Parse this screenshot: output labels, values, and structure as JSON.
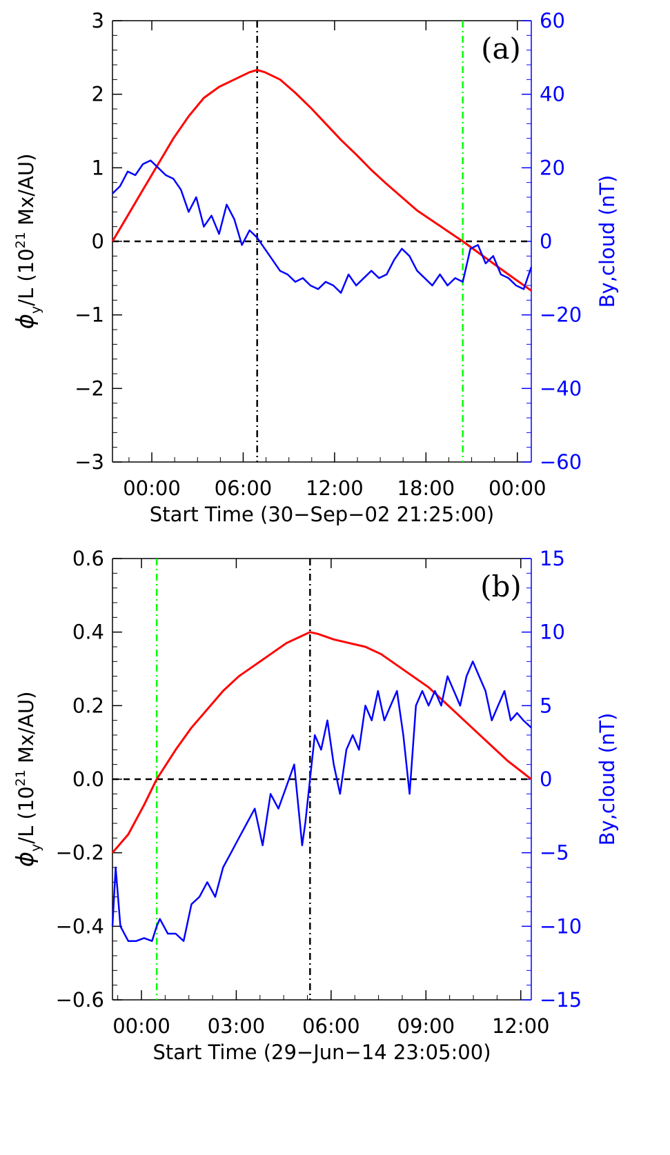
{
  "chart_data": [
    {
      "type": "line",
      "panel_label": "(a)",
      "xlabel": "Start Time (30−Sep−02 21:25:00)",
      "x_units": "hours since 30-Sep-02 21:25:00",
      "xlim": [
        0,
        27.5
      ],
      "x_ticks": [
        2.5833,
        8.5833,
        14.5833,
        20.5833,
        26.5833
      ],
      "x_tick_labels": [
        "00:00",
        "06:00",
        "12:00",
        "18:00",
        "00:00"
      ],
      "ylabel_left": {
        "pre": "ϕ",
        "sub": "y",
        "mid": "/L (10",
        "sup": "21",
        "post": " Mx/AU)"
      },
      "ylim_left": [
        -3,
        3
      ],
      "y_ticks_left": [
        -3,
        -2,
        -1,
        0,
        1,
        2,
        3
      ],
      "y_tick_labels_left": [
        "−3",
        "−2",
        "−1",
        "0",
        "1",
        "2",
        "3"
      ],
      "ylabel_right": "By,cloud (nT)",
      "ylim_right": [
        -60,
        60
      ],
      "y_ticks_right": [
        -60,
        -40,
        -20,
        0,
        20,
        40,
        60
      ],
      "y_tick_labels_right": [
        "−60",
        "−40",
        "−20",
        "0",
        "20",
        "40",
        "60"
      ],
      "colors": {
        "flux": "#ff0000",
        "by": "#0000ff",
        "right_axis": "#0000ff",
        "axes": "#000000",
        "vline_center": "#000000",
        "vline_boundary": "#00ff00"
      },
      "vline_center_x": 9.5,
      "vline_boundary_x": 23.0,
      "hline_y": 0,
      "series": [
        {
          "name": "phi_y/L",
          "axis": "left",
          "color": "#ff0000",
          "x": [
            0,
            1,
            2,
            3,
            4,
            5,
            6,
            7,
            8,
            9,
            9.5,
            10,
            11,
            12,
            13,
            14,
            15,
            16,
            17,
            18,
            19,
            20,
            21,
            22,
            23,
            24,
            25,
            26,
            27.5
          ],
          "y": [
            0,
            0.35,
            0.7,
            1.05,
            1.4,
            1.7,
            1.95,
            2.1,
            2.2,
            2.3,
            2.33,
            2.3,
            2.2,
            2.02,
            1.82,
            1.6,
            1.38,
            1.18,
            0.97,
            0.78,
            0.6,
            0.42,
            0.28,
            0.14,
            0.0,
            -0.15,
            -0.3,
            -0.45,
            -0.67
          ]
        },
        {
          "name": "By,cloud",
          "axis": "right",
          "color": "#0000ff",
          "x": [
            0,
            0.5,
            1,
            1.5,
            2,
            2.5,
            3,
            3.5,
            4,
            4.5,
            5,
            5.5,
            6,
            6.5,
            7,
            7.5,
            8,
            8.5,
            9,
            9.5,
            10,
            10.5,
            11,
            11.5,
            12,
            12.5,
            13,
            13.5,
            14,
            14.5,
            15,
            15.5,
            16,
            16.5,
            17,
            17.5,
            18,
            18.5,
            19,
            19.5,
            20,
            20.5,
            21,
            21.5,
            22,
            22.5,
            23,
            23.5,
            24,
            24.5,
            25,
            25.5,
            26,
            26.5,
            27,
            27.5
          ],
          "y": [
            13,
            15,
            19,
            18,
            21,
            22,
            20,
            18,
            17,
            14,
            8,
            12,
            4,
            7,
            2,
            10,
            6,
            -1,
            3,
            1,
            -2,
            -5,
            -8,
            -9,
            -11,
            -10,
            -12,
            -13,
            -11,
            -12,
            -14,
            -9,
            -12,
            -10,
            -8,
            -10,
            -9,
            -5,
            -2,
            -4,
            -8,
            -10,
            -12,
            -9,
            -12,
            -10,
            -11,
            -2,
            -1,
            -6,
            -4,
            -9,
            -10,
            -12,
            -13,
            -7
          ]
        }
      ]
    },
    {
      "type": "line",
      "panel_label": "(b)",
      "xlabel": "Start Time (29−Jun−14 23:05:00)",
      "x_units": "hours since 29-Jun-14 23:05:00",
      "xlim": [
        0,
        13.25
      ],
      "x_ticks": [
        0.9167,
        3.9167,
        6.9167,
        9.9167,
        12.9167
      ],
      "x_tick_labels": [
        "00:00",
        "03:00",
        "06:00",
        "09:00",
        "12:00"
      ],
      "ylabel_left": {
        "pre": "ϕ",
        "sub": "y",
        "mid": "/L (10",
        "sup": "21",
        "post": " Mx/AU)"
      },
      "ylim_left": [
        -0.6,
        0.6
      ],
      "y_ticks_left": [
        -0.6,
        -0.4,
        -0.2,
        0.0,
        0.2,
        0.4,
        0.6
      ],
      "y_tick_labels_left": [
        "−0.6",
        "−0.4",
        "−0.2",
        "0.0",
        "0.2",
        "0.4",
        "0.6"
      ],
      "ylabel_right": "By,cloud (nT)",
      "ylim_right": [
        -15,
        15
      ],
      "y_ticks_right": [
        -15,
        -10,
        -5,
        0,
        5,
        10,
        15
      ],
      "y_tick_labels_right": [
        "−15",
        "−10",
        "−5",
        "0",
        "5",
        "10",
        "15"
      ],
      "colors": {
        "flux": "#ff0000",
        "by": "#0000ff",
        "right_axis": "#0000ff",
        "axes": "#000000",
        "vline_center": "#000000",
        "vline_boundary": "#00ff00"
      },
      "vline_center_x": 6.25,
      "vline_boundary_x": 1.4,
      "hline_y": 0,
      "series": [
        {
          "name": "phi_y/L",
          "axis": "left",
          "color": "#ff0000",
          "x": [
            0,
            0.5,
            1,
            1.4,
            2,
            2.5,
            3,
            3.5,
            4,
            4.5,
            5,
            5.5,
            6,
            6.25,
            6.5,
            7,
            7.5,
            8,
            8.5,
            9,
            9.5,
            10,
            10.5,
            11,
            11.5,
            12,
            12.5,
            13.25
          ],
          "y": [
            -0.2,
            -0.15,
            -0.07,
            0.0,
            0.08,
            0.14,
            0.19,
            0.24,
            0.28,
            0.31,
            0.34,
            0.37,
            0.39,
            0.4,
            0.395,
            0.38,
            0.37,
            0.36,
            0.34,
            0.31,
            0.28,
            0.25,
            0.21,
            0.17,
            0.13,
            0.09,
            0.05,
            0.0
          ]
        },
        {
          "name": "By,cloud",
          "axis": "right",
          "color": "#0000ff",
          "x": [
            0,
            0.1,
            0.25,
            0.5,
            0.75,
            1,
            1.25,
            1.4,
            1.5,
            1.75,
            2,
            2.25,
            2.5,
            2.75,
            3,
            3.25,
            3.5,
            3.75,
            4,
            4.25,
            4.5,
            4.75,
            5,
            5.25,
            5.5,
            5.75,
            6,
            6.1,
            6.25,
            6.4,
            6.6,
            6.8,
            7,
            7.2,
            7.4,
            7.6,
            7.8,
            8,
            8.2,
            8.4,
            8.6,
            8.8,
            9,
            9.2,
            9.4,
            9.6,
            9.8,
            10,
            10.2,
            10.4,
            10.6,
            10.8,
            11,
            11.2,
            11.4,
            11.6,
            11.8,
            12,
            12.2,
            12.4,
            12.6,
            12.8,
            13,
            13.25
          ],
          "y": [
            -10,
            -6,
            -10,
            -11,
            -11,
            -10.8,
            -11,
            -10,
            -9.5,
            -10.5,
            -10.5,
            -11,
            -8.5,
            -8,
            -7,
            -8,
            -6,
            -5,
            -4,
            -3,
            -2,
            -4.5,
            -1,
            -2,
            -0.5,
            1,
            -4.5,
            -3,
            0,
            3,
            2,
            4,
            1,
            -1,
            2,
            3,
            2,
            5,
            4,
            6,
            4,
            5,
            6,
            3,
            -1,
            5,
            6,
            5,
            6,
            5,
            7,
            6,
            5,
            7,
            8,
            7,
            6,
            4,
            5,
            6,
            4,
            4.5,
            4,
            3.5
          ]
        }
      ]
    }
  ]
}
